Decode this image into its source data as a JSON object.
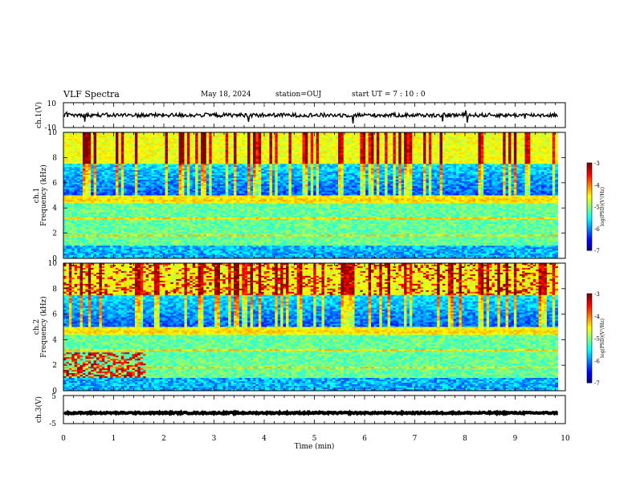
{
  "header": {
    "title": "VLF Spectra",
    "date": "May 18, 2024",
    "station": "station=OUJ",
    "start": "start  UT =   7 : 10 : 0"
  },
  "chart_data": [
    {
      "type": "line",
      "panel": "ch1-waveform",
      "ylabel": "ch.1(V)",
      "yticks": [
        "10",
        "-10"
      ],
      "ylim": [
        -10,
        10
      ],
      "xlim": [
        0,
        10
      ],
      "level": 0
    },
    {
      "type": "heatmap",
      "panel": "ch1-spectrogram",
      "ylabel_channel": "ch.1",
      "ylabel": "Frequency (kHz)",
      "yticks": [
        "0",
        "2",
        "4",
        "6",
        "8",
        "10"
      ],
      "ylim": [
        0,
        10
      ],
      "xlim": [
        0,
        10
      ],
      "data_end_min": 9.85,
      "colorbar": {
        "label": "log(PSD)(V²/Hz)",
        "ticks": [
          "-3",
          "-4",
          "-5",
          "-6",
          "-7"
        ],
        "range": [
          -7,
          -3
        ]
      }
    },
    {
      "type": "heatmap",
      "panel": "ch2-spectrogram",
      "ylabel_channel": "ch.2",
      "ylabel": "Frequency (kHz)",
      "yticks": [
        "0",
        "2",
        "4",
        "6",
        "8",
        "10"
      ],
      "ylim": [
        0,
        10
      ],
      "xlim": [
        0,
        10
      ],
      "data_end_min": 9.85,
      "colorbar": {
        "label": "log(PSD)(V²/Hz)",
        "ticks": [
          "-3",
          "-4",
          "-5",
          "-6",
          "-7"
        ],
        "range": [
          -7,
          -3
        ]
      }
    },
    {
      "type": "line",
      "panel": "ch3-waveform",
      "ylabel": "ch.3(V)",
      "yticks": [
        "5",
        "-5"
      ],
      "ylim": [
        -5,
        5
      ],
      "xlim": [
        0,
        10
      ],
      "level": -1.2
    }
  ],
  "xaxis": {
    "label": "Time (min)",
    "ticks": [
      "0",
      "1",
      "2",
      "3",
      "4",
      "5",
      "6",
      "7",
      "8",
      "9",
      "10"
    ]
  }
}
